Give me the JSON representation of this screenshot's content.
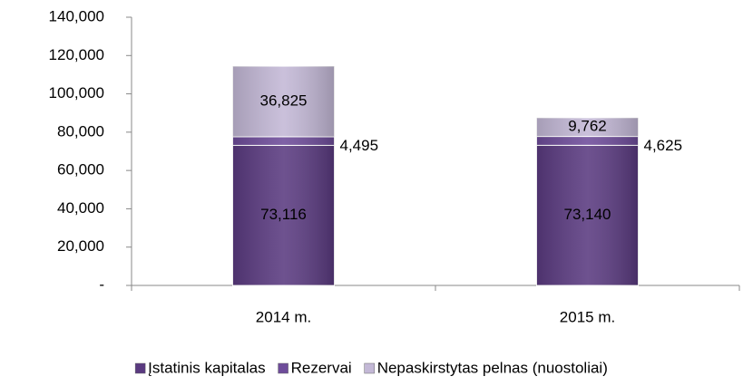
{
  "chart_data": {
    "type": "stacked-bar",
    "categories": [
      "2014 m.",
      "2015 m."
    ],
    "series": [
      {
        "name": "Įstatinis kapitalas",
        "color": "#5a3a80",
        "values": [
          73116,
          73140
        ],
        "value_labels": [
          "73,116",
          "73,140"
        ]
      },
      {
        "name": "Rezervai",
        "color": "#6e4c9a",
        "values": [
          4495,
          4625
        ],
        "value_labels": [
          "4,495",
          "4,625"
        ]
      },
      {
        "name": "Nepaskirstytas pelnas (nuostoliai)",
        "color": "#c3b8d6",
        "values": [
          36825,
          9762
        ],
        "value_labels": [
          "36,825",
          "9,762"
        ]
      }
    ],
    "ylim": [
      0,
      140000
    ],
    "yticks": [
      {
        "value": 0,
        "label": "-"
      },
      {
        "value": 20000,
        "label": "20,000"
      },
      {
        "value": 40000,
        "label": "40,000"
      },
      {
        "value": 60000,
        "label": "60,000"
      },
      {
        "value": 80000,
        "label": "80,000"
      },
      {
        "value": 100000,
        "label": "100,000"
      },
      {
        "value": 120000,
        "label": "120,000"
      },
      {
        "value": 140000,
        "label": "140,000"
      }
    ],
    "grid": false,
    "legend": "bottom"
  }
}
